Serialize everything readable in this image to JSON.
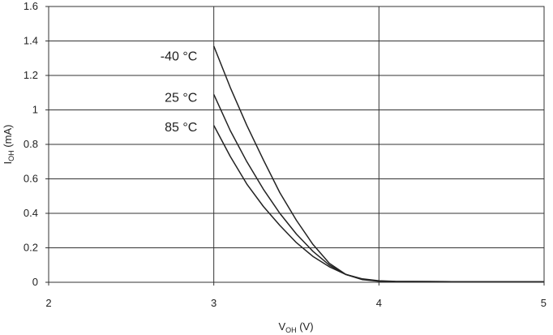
{
  "chart_data": {
    "type": "line",
    "xlabel": {
      "main": "V",
      "sub": "OH",
      "unit": " (V)"
    },
    "ylabel": {
      "main": "I",
      "sub": "OH",
      "unit": " (mA)"
    },
    "xlim": [
      2,
      5
    ],
    "ylim": [
      0,
      1.6
    ],
    "xticks": [
      "2",
      "3",
      "4",
      "5"
    ],
    "yticks": [
      "0",
      "0.2",
      "0.4",
      "0.6",
      "0.8",
      "1",
      "1.2",
      "1.4",
      "1.6"
    ],
    "grid": true,
    "series": [
      {
        "name": "-40 °C",
        "x": [
          3.0,
          3.1,
          3.2,
          3.3,
          3.4,
          3.5,
          3.6,
          3.7,
          3.8,
          3.9,
          4.0,
          4.1,
          4.3,
          4.6,
          5.0
        ],
        "y": [
          1.37,
          1.13,
          0.91,
          0.71,
          0.52,
          0.36,
          0.22,
          0.11,
          0.045,
          0.015,
          0.006,
          0.004,
          0.004,
          0.003,
          0.003
        ]
      },
      {
        "name": "25 °C",
        "x": [
          3.0,
          3.1,
          3.2,
          3.3,
          3.4,
          3.5,
          3.6,
          3.7,
          3.8,
          3.9,
          4.0,
          4.1,
          4.3,
          4.6,
          5.0
        ],
        "y": [
          1.09,
          0.88,
          0.7,
          0.54,
          0.4,
          0.28,
          0.18,
          0.1,
          0.045,
          0.017,
          0.007,
          0.004,
          0.004,
          0.003,
          0.003
        ]
      },
      {
        "name": "85 °C",
        "x": [
          3.0,
          3.1,
          3.2,
          3.3,
          3.4,
          3.5,
          3.6,
          3.7,
          3.8,
          3.9,
          4.0,
          4.1,
          4.3,
          4.6,
          5.0
        ],
        "y": [
          0.91,
          0.73,
          0.57,
          0.44,
          0.33,
          0.23,
          0.15,
          0.09,
          0.045,
          0.02,
          0.009,
          0.005,
          0.004,
          0.003,
          0.003
        ]
      }
    ],
    "annotations": [
      {
        "text": "-40 °C",
        "x": 2.9,
        "y": 1.31
      },
      {
        "text": "25 °C",
        "x": 2.9,
        "y": 1.07
      },
      {
        "text": "85 °C",
        "x": 2.9,
        "y": 0.9
      }
    ]
  }
}
